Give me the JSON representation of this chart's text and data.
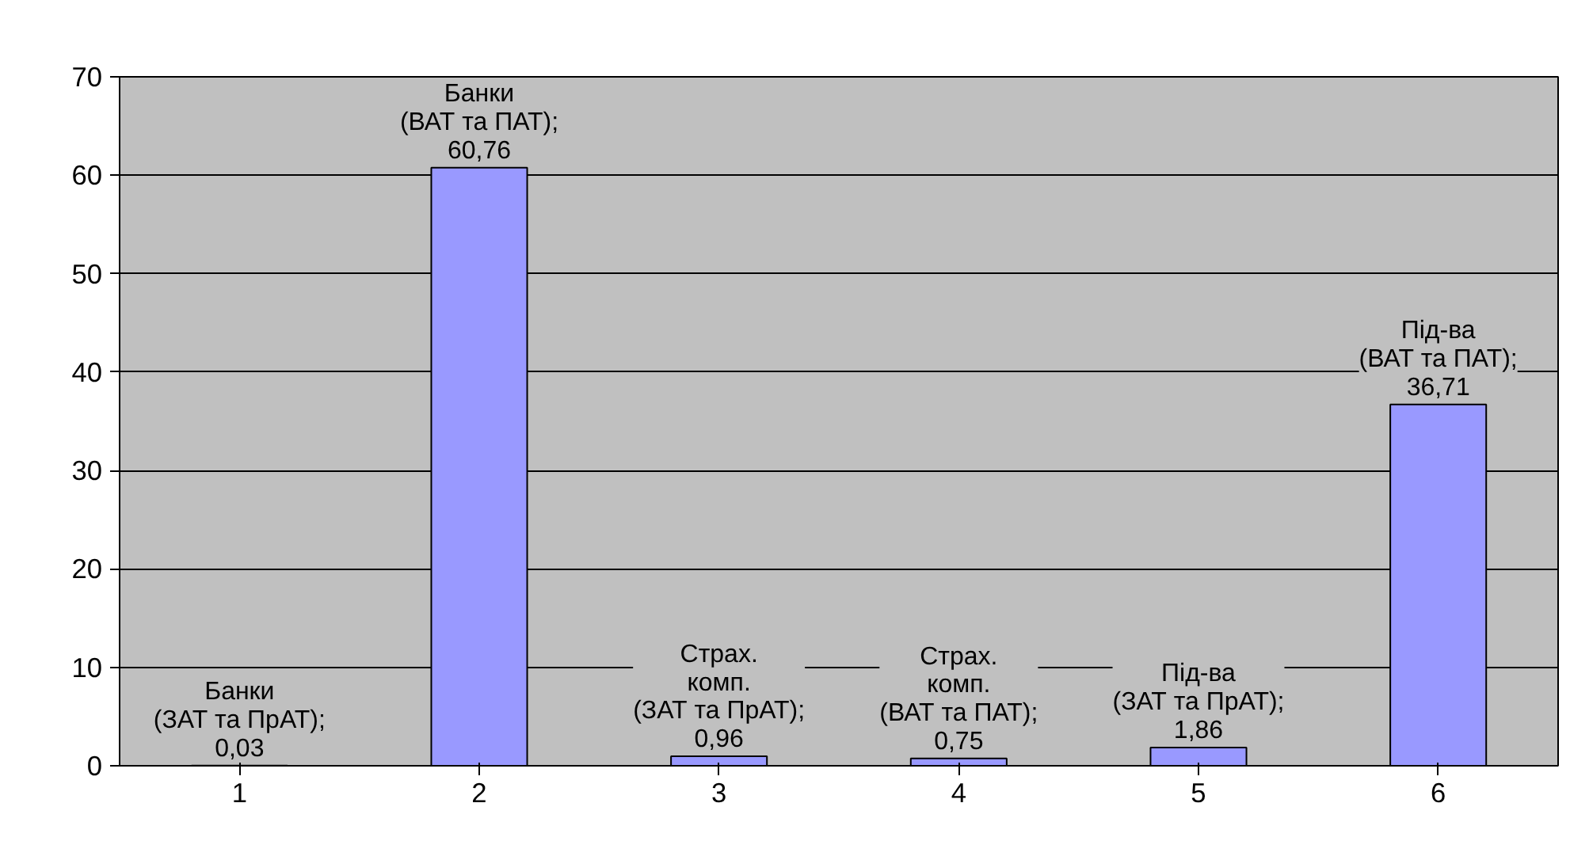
{
  "chart_data": {
    "type": "bar",
    "categories": [
      "1",
      "2",
      "3",
      "4",
      "5",
      "6"
    ],
    "values": [
      0.03,
      60.76,
      0.96,
      0.75,
      1.86,
      36.71
    ],
    "color": "#9999ff",
    "value_labels": [
      "Банки\n(ЗАТ та ПрАТ);\n0,03",
      "Банки\n(ВАТ та ПАТ);\n60,76",
      "Страх.\nкомп.\n(ЗАТ та ПрАТ);\n0,96",
      "Страх.\nкомп.\n(ВАТ та ПАТ);\n0,75",
      "Під-ва\n(ЗАТ та ПрАТ);\n1,86",
      "Під-ва\n(ВАТ та ПАТ);\n36,71"
    ],
    "ylim": [
      0,
      70
    ],
    "yticks": [
      0,
      10,
      20,
      30,
      40,
      50,
      60,
      70
    ],
    "grid": "y"
  }
}
